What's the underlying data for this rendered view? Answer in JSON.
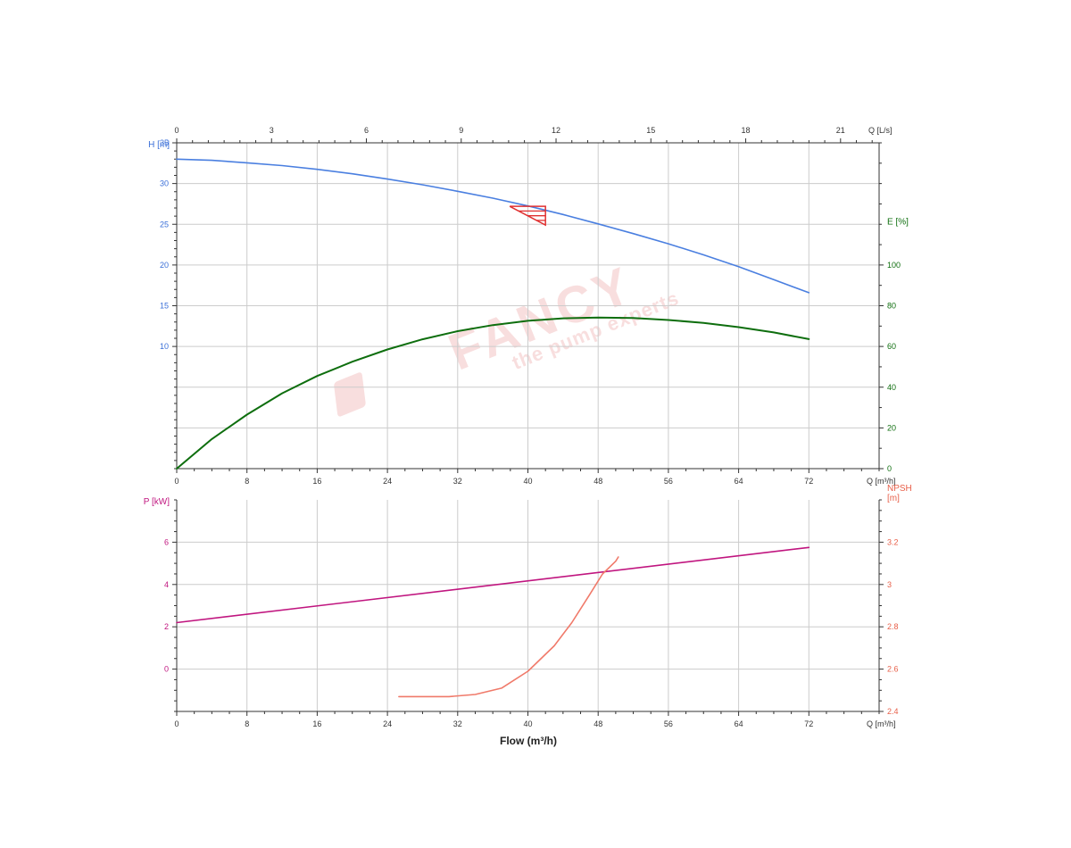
{
  "colors": {
    "head": "#4a7fe0",
    "efficiency": "#0e6e0e",
    "power": "#c0157f",
    "npsh": "#f07a6a",
    "power_axis": "#c0157f",
    "npsh_axis": "#e8604a",
    "head_axis": "#3a6fd8",
    "eff_axis": "#0e6e0e",
    "grid": "#cccccc",
    "duty": "#e03030",
    "axis": "#333333",
    "watermark": "#f3c4c4"
  },
  "watermark": {
    "brand": "FANCY",
    "tagline": "the pump experts"
  },
  "flow_title": "Flow (m³/h)",
  "chart_data": [
    {
      "type": "line",
      "name": "head-efficiency",
      "x_unit": "Q [m³/h]",
      "x_top_unit": "Q [L/s]",
      "xlim": [
        0,
        80
      ],
      "x_ticks": [
        0,
        8,
        16,
        24,
        32,
        40,
        48,
        56,
        64,
        72
      ],
      "x_top_ticks": [
        0,
        3,
        6,
        9,
        12,
        15,
        18,
        21
      ],
      "x_top_lim": [
        0,
        22.22
      ],
      "y_left_unit": "H [m]",
      "y_left_lim": [
        -5,
        35
      ],
      "y_left_ticks": [
        10,
        15,
        20,
        25,
        30,
        35
      ],
      "y_right_unit": "E [%]",
      "y_right_lim": [
        0,
        160
      ],
      "y_right_ticks": [
        0,
        20,
        40,
        60,
        80,
        100
      ],
      "series": [
        {
          "key": "head",
          "axis": "left",
          "x": [
            0,
            4,
            8,
            12,
            16,
            20,
            24,
            28,
            32,
            36,
            40,
            44,
            48,
            52,
            56,
            60,
            64,
            68,
            72
          ],
          "y": [
            33.0,
            32.85,
            32.55,
            32.2,
            31.75,
            31.2,
            30.55,
            29.85,
            29.05,
            28.2,
            27.25,
            26.2,
            25.05,
            23.85,
            22.6,
            21.25,
            19.8,
            18.2,
            16.6
          ]
        },
        {
          "key": "efficiency",
          "axis": "right",
          "x": [
            0,
            4,
            8,
            12,
            16,
            20,
            24,
            28,
            32,
            36,
            40,
            44,
            48,
            52,
            56,
            60,
            64,
            68,
            72
          ],
          "y": [
            0,
            14.5,
            26.5,
            37,
            45.5,
            52.5,
            58.5,
            63.5,
            67.5,
            70.5,
            72.6,
            73.8,
            74.2,
            74.0,
            73.0,
            71.6,
            69.5,
            66.9,
            63.6
          ]
        }
      ],
      "duty_point": {
        "x": 42,
        "y": 27.2
      }
    },
    {
      "type": "line",
      "name": "power-npsh",
      "x_unit": "Q [m³/h]",
      "xlim": [
        0,
        80
      ],
      "x_ticks": [
        0,
        8,
        16,
        24,
        32,
        40,
        48,
        56,
        64,
        72
      ],
      "y_left_unit": "P [kW]",
      "y_left_lim": [
        -2,
        8
      ],
      "y_left_ticks": [
        0,
        2,
        4,
        6
      ],
      "y_right_unit": "NPSH [m]",
      "y_right_label_lines": [
        "NPSH",
        "[m]"
      ],
      "y_right_lim": [
        2.4,
        3.4
      ],
      "y_right_ticks": [
        2.4,
        2.6,
        2.8,
        3,
        3.2
      ],
      "series": [
        {
          "key": "power",
          "axis": "left",
          "x": [
            0,
            72
          ],
          "y": [
            2.2,
            5.75
          ]
        },
        {
          "key": "npsh",
          "axis": "right",
          "x": [
            25.3,
            27,
            30,
            31,
            34,
            37,
            40,
            43,
            45,
            47,
            48.5,
            50,
            50.3
          ],
          "y": [
            2.47,
            2.47,
            2.47,
            2.47,
            2.48,
            2.51,
            2.59,
            2.71,
            2.82,
            2.95,
            3.05,
            3.11,
            3.13
          ]
        }
      ]
    }
  ]
}
